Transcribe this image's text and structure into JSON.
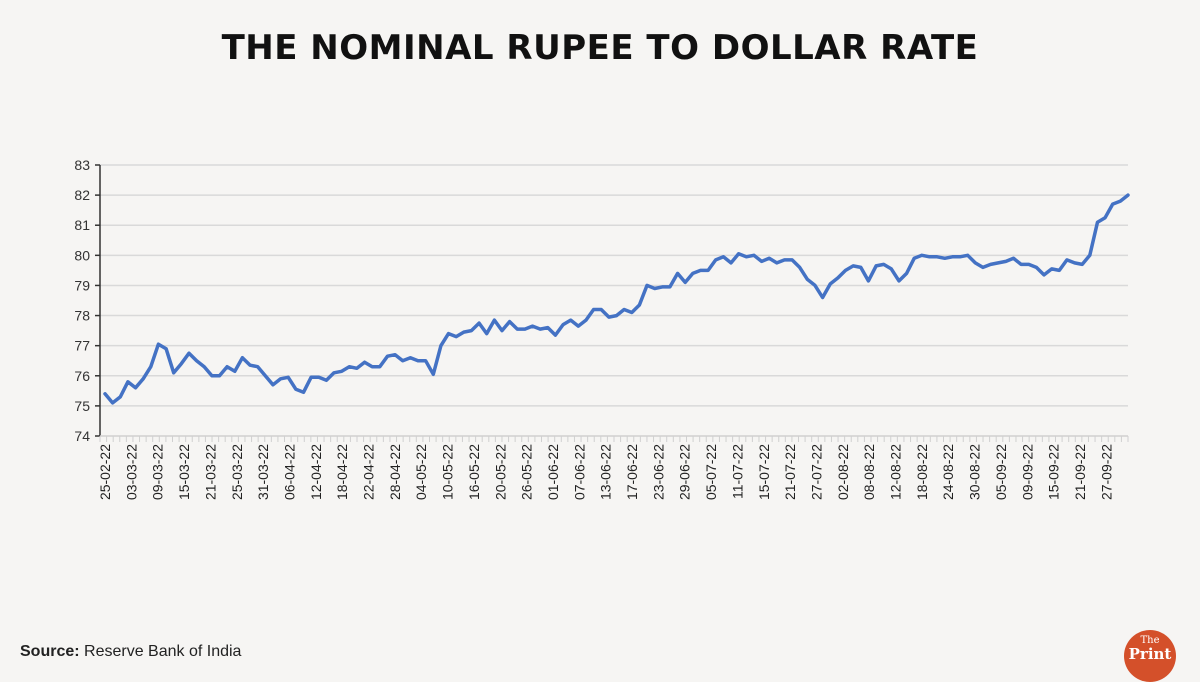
{
  "chart_data": {
    "type": "line",
    "title": "THE NOMINAL RUPEE TO DOLLAR RATE",
    "xlabel": "",
    "ylabel": "",
    "ylim": [
      74,
      83
    ],
    "yticks": [
      74,
      75,
      76,
      77,
      78,
      79,
      80,
      81,
      82,
      83
    ],
    "grid": true,
    "line_color": "#4472c4",
    "x_tick_labels": [
      "25-02-22",
      "03-03-22",
      "09-03-22",
      "15-03-22",
      "21-03-22",
      "25-03-22",
      "31-03-22",
      "06-04-22",
      "12-04-22",
      "18-04-22",
      "22-04-22",
      "28-04-22",
      "04-05-22",
      "10-05-22",
      "16-05-22",
      "20-05-22",
      "26-05-22",
      "01-06-22",
      "07-06-22",
      "13-06-22",
      "17-06-22",
      "23-06-22",
      "29-06-22",
      "05-07-22",
      "11-07-22",
      "15-07-22",
      "21-07-22",
      "27-07-22",
      "02-08-22",
      "08-08-22",
      "12-08-22",
      "18-08-22",
      "24-08-22",
      "30-08-22",
      "05-09-22",
      "09-09-22",
      "15-09-22",
      "21-09-22",
      "27-09-22"
    ],
    "values": [
      75.4,
      75.1,
      75.3,
      75.8,
      75.6,
      75.9,
      76.3,
      77.05,
      76.9,
      76.1,
      76.4,
      76.75,
      76.5,
      76.3,
      76.0,
      76.0,
      76.3,
      76.15,
      76.6,
      76.35,
      76.3,
      76.0,
      75.7,
      75.9,
      75.95,
      75.55,
      75.45,
      75.95,
      75.95,
      75.85,
      76.1,
      76.15,
      76.3,
      76.25,
      76.45,
      76.3,
      76.3,
      76.65,
      76.7,
      76.5,
      76.6,
      76.5,
      76.5,
      76.05,
      77.0,
      77.4,
      77.3,
      77.45,
      77.5,
      77.75,
      77.4,
      77.85,
      77.5,
      77.8,
      77.55,
      77.55,
      77.65,
      77.55,
      77.6,
      77.35,
      77.7,
      77.85,
      77.65,
      77.85,
      78.2,
      78.2,
      77.95,
      78.0,
      78.2,
      78.1,
      78.35,
      79.0,
      78.9,
      78.95,
      78.95,
      79.4,
      79.1,
      79.4,
      79.5,
      79.5,
      79.85,
      79.95,
      79.75,
      80.05,
      79.95,
      80.0,
      79.8,
      79.9,
      79.75,
      79.85,
      79.85,
      79.6,
      79.2,
      79.0,
      78.6,
      79.05,
      79.25,
      79.5,
      79.65,
      79.6,
      79.15,
      79.65,
      79.7,
      79.55,
      79.15,
      79.4,
      79.9,
      80.0,
      79.95,
      79.95,
      79.9,
      79.95,
      79.95,
      80.0,
      79.75,
      79.6,
      79.7,
      79.75,
      79.8,
      79.9,
      79.7,
      79.7,
      79.6,
      79.35,
      79.55,
      79.5,
      79.85,
      79.75,
      79.7,
      80.0,
      81.1,
      81.25,
      81.7,
      81.8,
      82.0
    ]
  },
  "source": {
    "label": "Source:",
    "text": "Reserve Bank of India"
  },
  "logo": {
    "line1": "The",
    "line2": "Print",
    "color": "#d4502a"
  }
}
